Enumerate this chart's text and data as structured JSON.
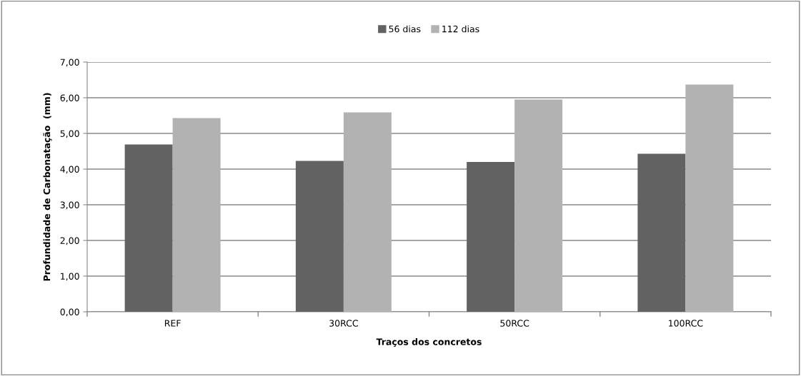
{
  "chart_data": {
    "type": "bar",
    "xlabel": "Traços dos concretos",
    "ylabel": "Profundidade de Carbonatação  (mm)",
    "categories": [
      "REF",
      "30RCC",
      "50RCC",
      "100RCC"
    ],
    "series": [
      {
        "name": "56 dias",
        "color": "#626262",
        "values": [
          4.69,
          4.23,
          4.2,
          4.43
        ]
      },
      {
        "name": "112 dias",
        "color": "#b2b2b2",
        "values": [
          5.43,
          5.59,
          5.95,
          6.37
        ]
      }
    ],
    "ylim": [
      0,
      7
    ],
    "yticks": [
      {
        "value": 0,
        "label": "0,00"
      },
      {
        "value": 1,
        "label": "1,00"
      },
      {
        "value": 2,
        "label": "2,00"
      },
      {
        "value": 3,
        "label": "3,00"
      },
      {
        "value": 4,
        "label": "4,00"
      },
      {
        "value": 5,
        "label": "5,00"
      },
      {
        "value": 6,
        "label": "6,00"
      },
      {
        "value": 7,
        "label": "7,00"
      }
    ],
    "grid": "y",
    "legend": "top"
  }
}
